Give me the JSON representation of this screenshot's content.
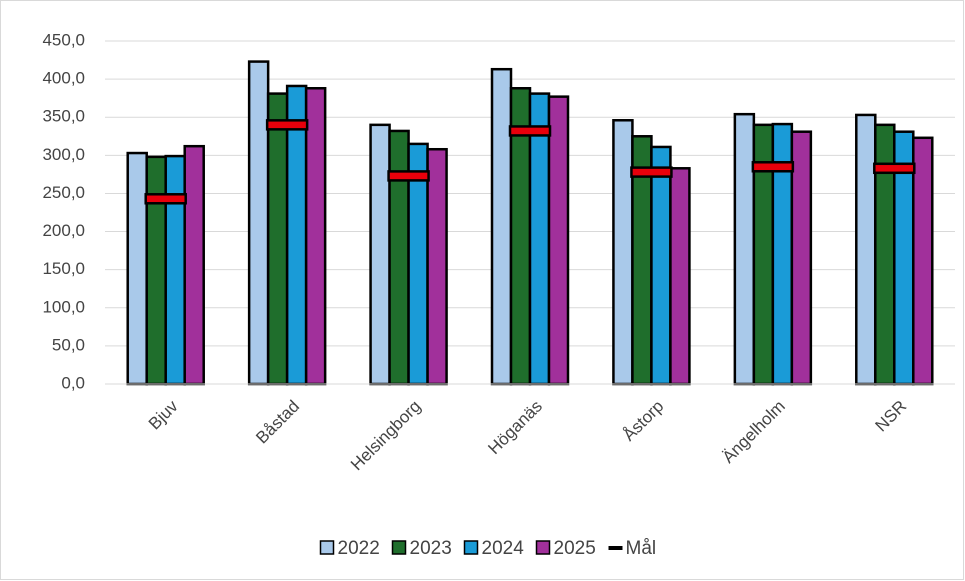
{
  "chart_data": {
    "type": "bar",
    "categories": [
      "Bjuv",
      "Båstad",
      "Helsingborg",
      "Höganäs",
      "Åstorp",
      "Ängelholm",
      "NSR"
    ],
    "series": [
      {
        "name": "2022",
        "color": "#a9c9ea",
        "values": [
          303,
          423,
          340,
          413,
          346,
          354,
          353
        ]
      },
      {
        "name": "2023",
        "color": "#1f6e2c",
        "values": [
          298,
          381,
          332,
          388,
          325,
          340,
          340
        ]
      },
      {
        "name": "2024",
        "color": "#1a9bd7",
        "values": [
          299,
          391,
          315,
          381,
          311,
          341,
          331
        ]
      },
      {
        "name": "2025",
        "color": "#a1309b",
        "values": [
          312,
          388,
          308,
          377,
          283,
          331,
          323
        ]
      },
      {
        "name": "Mål",
        "color": "#e8000b",
        "marker": "dash",
        "values": [
          243,
          340,
          273,
          332,
          278,
          285,
          283
        ]
      }
    ],
    "ylim": [
      0,
      450
    ],
    "yticks": [
      {
        "value": 0,
        "label": "0,0"
      },
      {
        "value": 50,
        "label": "50,0"
      },
      {
        "value": 100,
        "label": "100,0"
      },
      {
        "value": 150,
        "label": "150,0"
      },
      {
        "value": 200,
        "label": "200,0"
      },
      {
        "value": 250,
        "label": "250,0"
      },
      {
        "value": 300,
        "label": "300,0"
      },
      {
        "value": 350,
        "label": "350,0"
      },
      {
        "value": 400,
        "label": "400,0"
      },
      {
        "value": 450,
        "label": "450,0"
      }
    ],
    "grid": true,
    "legend": "bottom"
  }
}
